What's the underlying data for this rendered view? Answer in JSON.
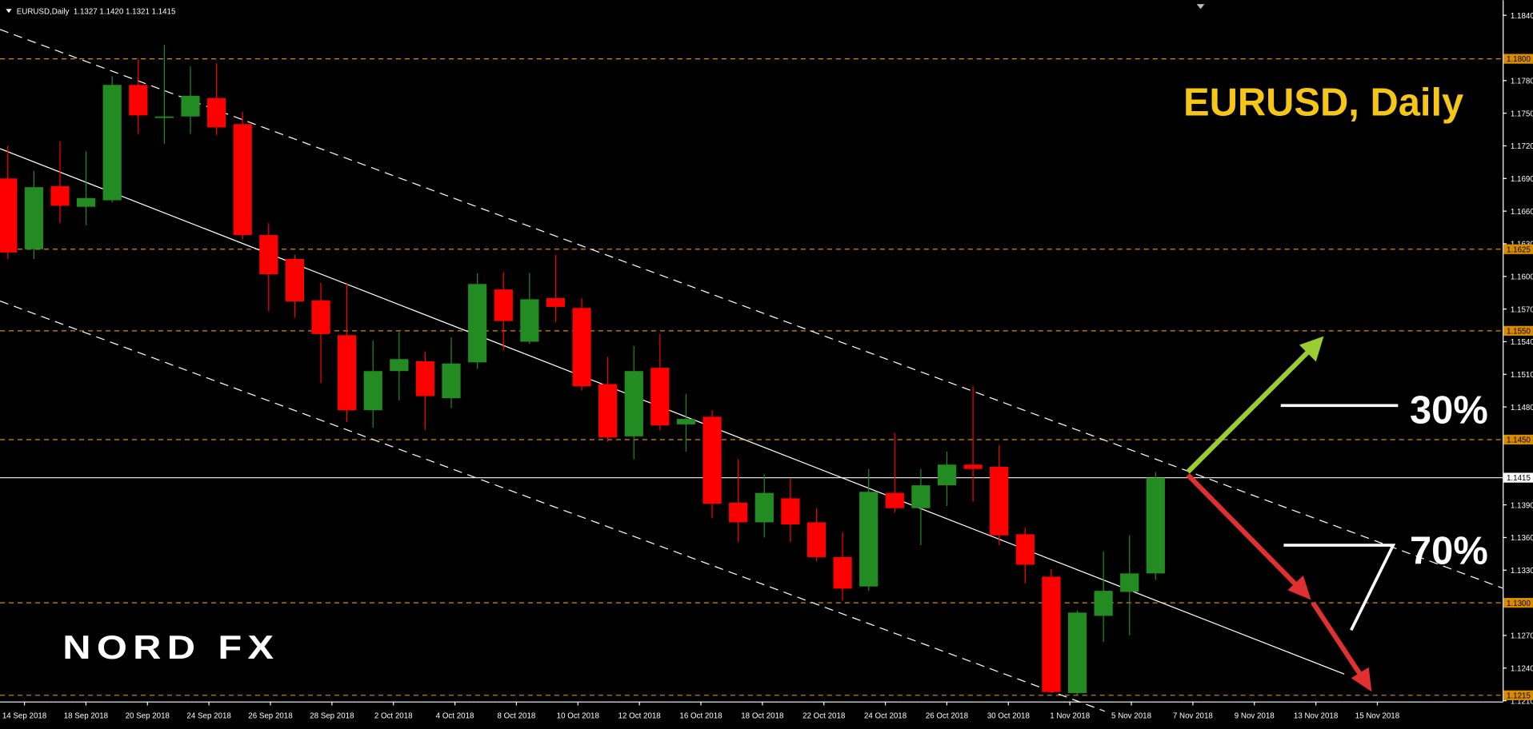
{
  "chart_data": {
    "type": "candlestick",
    "symbol_info": "EURUSD,Daily  1.1327 1.1420 1.1321 1.1415",
    "title": "EURUSD, Daily",
    "annotations": [
      "30%",
      "70%"
    ],
    "logo": "NORD FX",
    "up_color": "#228b22",
    "down_color": "#ff0000",
    "open": [
      1.169,
      1.1625,
      1.1683,
      1.1664,
      1.167,
      1.1776,
      1.1746,
      1.1747,
      1.1764,
      1.174,
      1.1638,
      1.1616,
      1.1578,
      1.1546,
      1.1477,
      1.1513,
      1.1522,
      1.1488,
      1.1521,
      1.1588,
      1.154,
      1.158,
      1.1571,
      1.1501,
      1.1453,
      1.1516,
      1.1464,
      1.1471,
      1.1392,
      1.1374,
      1.1396,
      1.1374,
      1.1342,
      1.1315,
      1.1401,
      1.1387,
      1.1408,
      1.1427,
      1.1425,
      1.1363,
      1.1324,
      1.1217,
      1.1288,
      1.131,
      1.1327
    ],
    "high": [
      1.172,
      1.1697,
      1.1724,
      1.1715,
      1.1784,
      1.18,
      1.1813,
      1.1793,
      1.1796,
      1.1751,
      1.1649,
      1.162,
      1.1594,
      1.1594,
      1.1541,
      1.1549,
      1.1531,
      1.1544,
      1.1603,
      1.1604,
      1.1603,
      1.162,
      1.158,
      1.1526,
      1.1536,
      1.1547,
      1.1492,
      1.1477,
      1.1432,
      1.1418,
      1.1414,
      1.1387,
      1.1365,
      1.1423,
      1.1456,
      1.1423,
      1.1439,
      1.1499,
      1.1445,
      1.1369,
      1.1331,
      1.1293,
      1.1347,
      1.1362,
      1.142
    ],
    "low": [
      1.1616,
      1.1616,
      1.1649,
      1.1647,
      1.1668,
      1.1731,
      1.1722,
      1.1731,
      1.173,
      1.1634,
      1.1568,
      1.1562,
      1.1502,
      1.1466,
      1.1461,
      1.1486,
      1.1459,
      1.1479,
      1.1515,
      1.1532,
      1.1538,
      1.1558,
      1.1495,
      1.1448,
      1.1432,
      1.1459,
      1.1439,
      1.1378,
      1.1356,
      1.136,
      1.1356,
      1.1338,
      1.1302,
      1.1311,
      1.1383,
      1.1353,
      1.1389,
      1.1393,
      1.1353,
      1.1318,
      1.1217,
      1.1215,
      1.1264,
      1.127,
      1.1321
    ],
    "close": [
      1.1622,
      1.1682,
      1.1665,
      1.1672,
      1.1776,
      1.1748,
      1.1747,
      1.1766,
      1.1737,
      1.1638,
      1.1602,
      1.1577,
      1.1547,
      1.1477,
      1.1513,
      1.1524,
      1.149,
      1.152,
      1.1593,
      1.1559,
      1.1579,
      1.1572,
      1.1499,
      1.1452,
      1.1513,
      1.1463,
      1.1469,
      1.1391,
      1.1374,
      1.1401,
      1.1372,
      1.1342,
      1.1313,
      1.1402,
      1.1387,
      1.1408,
      1.1427,
      1.1423,
      1.1362,
      1.1335,
      1.1218,
      1.1291,
      1.1311,
      1.1327,
      1.1415
    ],
    "ylim": [
      1.12093,
      1.18539
    ],
    "yticks": [
      {
        "value": 1.184,
        "label": "1.1840"
      },
      {
        "value": 1.178,
        "label": "1.1780"
      },
      {
        "value": 1.175,
        "label": "1.1750"
      },
      {
        "value": 1.172,
        "label": "1.1720"
      },
      {
        "value": 1.169,
        "label": "1.1690"
      },
      {
        "value": 1.166,
        "label": "1.1660"
      },
      {
        "value": 1.163,
        "label": "1.1630"
      },
      {
        "value": 1.16,
        "label": "1.1600"
      },
      {
        "value": 1.157,
        "label": "1.1570"
      },
      {
        "value": 1.154,
        "label": "1.1540"
      },
      {
        "value": 1.151,
        "label": "1.1510"
      },
      {
        "value": 1.148,
        "label": "1.1480"
      },
      {
        "value": 1.139,
        "label": "1.1390"
      },
      {
        "value": 1.136,
        "label": "1.1360"
      },
      {
        "value": 1.133,
        "label": "1.1330"
      },
      {
        "value": 1.127,
        "label": "1.1270"
      },
      {
        "value": 1.124,
        "label": "1.1240"
      },
      {
        "value": 1.121,
        "label": "1.1210"
      }
    ],
    "levels": [
      {
        "value": 1.18,
        "label": "1.1800"
      },
      {
        "value": 1.1625,
        "label": "1.1625"
      },
      {
        "value": 1.155,
        "label": "1.1550"
      },
      {
        "value": 1.145,
        "label": "1.1450"
      },
      {
        "value": 1.13,
        "label": "1.1300"
      },
      {
        "value": 1.1215,
        "label": "1.1215"
      }
    ],
    "level_color": "#d98c00",
    "current_price": {
      "value": 1.1415,
      "label": "1.1415"
    },
    "xlabels": [
      "14 Sep 2018",
      "18 Sep 2018",
      "20 Sep 2018",
      "24 Sep 2018",
      "26 Sep 2018",
      "28 Sep 2018",
      "2 Oct 2018",
      "4 Oct 2018",
      "8 Oct 2018",
      "10 Oct 2018",
      "12 Oct 2018",
      "16 Oct 2018",
      "18 Oct 2018",
      "22 Oct 2018",
      "24 Oct 2018",
      "26 Oct 2018",
      "30 Oct 2018",
      "1 Nov 2018",
      "5 Nov 2018",
      "7 Nov 2018",
      "9 Nov 2018",
      "13 Nov 2018",
      "15 Nov 2018"
    ]
  }
}
